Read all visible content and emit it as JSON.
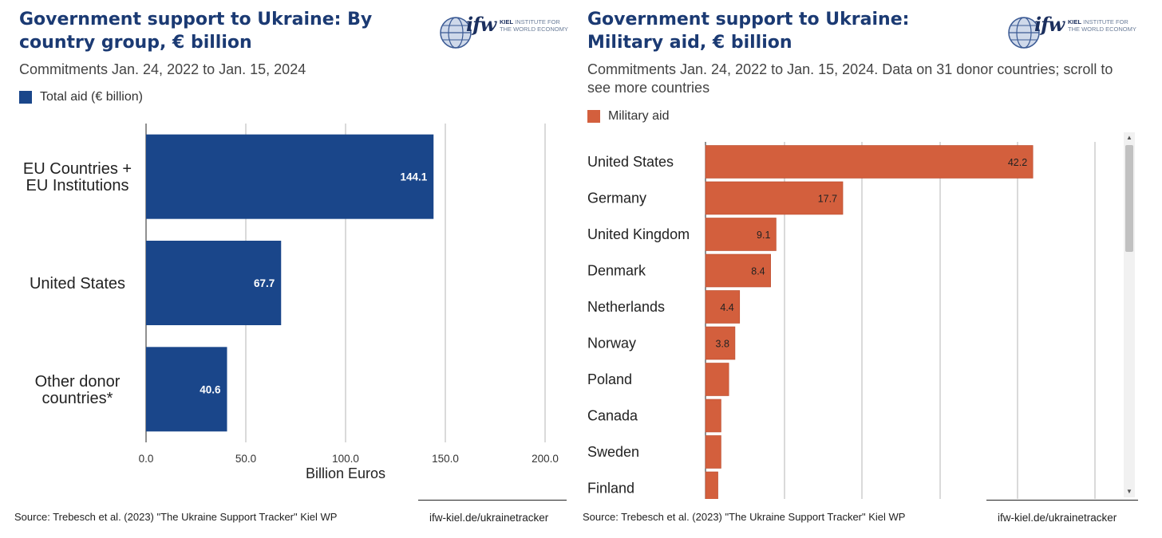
{
  "left": {
    "title": "Government support to Ukraine: By country group, € billion",
    "subtitle": "Commitments Jan. 24, 2022 to Jan. 15, 2024",
    "legend_label": "Total aid (€ billion)",
    "logo": {
      "wordmark": "ifw",
      "institute_bold": "KIEL",
      "institute_rest": " INSTITUTE FOR\nTHE WORLD ECONOMY"
    },
    "source": "Source: Trebesch et al. (2023) \"The Ukraine Support Tracker\" Kiel WP",
    "url": "ifw-kiel.de/ukrainetracker"
  },
  "right": {
    "title": "Government support to Ukraine: Military aid, € billion",
    "subtitle": "Commitments Jan. 24, 2022 to Jan. 15, 2024. Data on 31 donor countries; scroll to see more countries",
    "legend_label": "Military aid",
    "logo": {
      "wordmark": "ifw",
      "institute_bold": "KIEL",
      "institute_rest": " INSTITUTE FOR\nTHE WORLD ECONOMY"
    },
    "source": "Source: Trebesch et al. (2023) \"The Ukraine Support Tracker\" Kiel WP",
    "url": "ifw-kiel.de/ukrainetracker"
  },
  "colors": {
    "total_aid": "#1a468a",
    "military_aid": "#d35f3d",
    "title": "#1b3a73",
    "grid": "#b5b5b5"
  },
  "chart_data": [
    {
      "type": "bar",
      "orientation": "horizontal",
      "title": "Government support to Ukraine: By country group, € billion",
      "subtitle": "Commitments Jan. 24, 2022 to Jan. 15, 2024",
      "categories": [
        [
          "EU Countries +",
          "EU Institutions"
        ],
        [
          "United States"
        ],
        [
          "Other donor",
          "countries*"
        ]
      ],
      "series": [
        {
          "name": "Total aid (€ billion)",
          "values": [
            144.1,
            67.7,
            40.6
          ],
          "labels": [
            "144.1",
            "67.7",
            "40.6"
          ]
        }
      ],
      "xlabel": "Billion Euros",
      "xticks": [
        "0.0",
        "50.0",
        "100.0",
        "150.0",
        "200.0"
      ],
      "xlim": [
        0,
        200
      ],
      "grid": true,
      "legend_position": "top-left"
    },
    {
      "type": "bar",
      "orientation": "horizontal",
      "title": "Government support to Ukraine: Military aid, € billion",
      "subtitle": "Commitments Jan. 24, 2022 to Jan. 15, 2024. Data on 31 donor countries; scroll to see more countries",
      "categories": [
        "United States",
        "Germany",
        "United Kingdom",
        "Denmark",
        "Netherlands",
        "Norway",
        "Poland",
        "Canada",
        "Sweden",
        "Finland"
      ],
      "series": [
        {
          "name": "Military aid",
          "values": [
            42.2,
            17.7,
            9.1,
            8.4,
            4.4,
            3.8,
            3.0,
            2.0,
            2.0,
            1.6
          ],
          "labels": [
            "42.2",
            "17.7",
            "9.1",
            "8.4",
            "4.4",
            "3.8",
            "",
            "",
            "",
            ""
          ]
        }
      ],
      "xlim": [
        0,
        55
      ],
      "grid": true,
      "legend_position": "top-left"
    }
  ]
}
